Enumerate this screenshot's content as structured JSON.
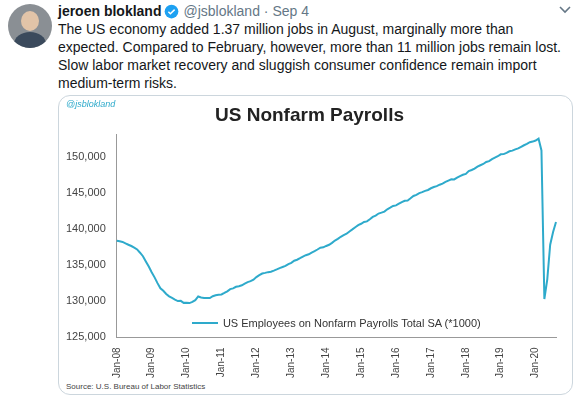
{
  "tweet": {
    "name": "jeroen blokland",
    "handle_date": "@jsblokland · Sep 4",
    "text": "The US economy added 1.37 million jobs in August, marginally more than expected. Compared to February, however, more than 11 million jobs remain lost. Slow labor market recovery and sluggish consumer confidence remain import medium-term risks."
  },
  "chart_data": {
    "type": "line",
    "title": "US Nonfarm Payrolls",
    "annotations": [
      "@jsblokland",
      "Source: U.S. Bureau of Labor Statistics"
    ],
    "categories": [
      "Jan-08",
      null,
      null,
      null,
      null,
      null,
      null,
      null,
      null,
      null,
      null,
      null,
      "Jan-09",
      null,
      null,
      null,
      null,
      null,
      null,
      null,
      null,
      null,
      null,
      null,
      "Jan-10",
      null,
      null,
      null,
      null,
      null,
      null,
      null,
      null,
      null,
      null,
      null,
      "Jan-11",
      null,
      null,
      null,
      null,
      null,
      null,
      null,
      null,
      null,
      null,
      null,
      "Jan-12",
      null,
      null,
      null,
      null,
      null,
      null,
      null,
      null,
      null,
      null,
      null,
      "Jan-13",
      null,
      null,
      null,
      null,
      null,
      null,
      null,
      null,
      null,
      null,
      null,
      "Jan-14",
      null,
      null,
      null,
      null,
      null,
      null,
      null,
      null,
      null,
      null,
      null,
      "Jan-15",
      null,
      null,
      null,
      null,
      null,
      null,
      null,
      null,
      null,
      null,
      null,
      "Jan-16",
      null,
      null,
      null,
      null,
      null,
      null,
      null,
      null,
      null,
      null,
      null,
      "Jan-17",
      null,
      null,
      null,
      null,
      null,
      null,
      null,
      null,
      null,
      null,
      null,
      "Jan-18",
      null,
      null,
      null,
      null,
      null,
      null,
      null,
      null,
      null,
      null,
      null,
      "Jan-19",
      null,
      null,
      null,
      null,
      null,
      null,
      null,
      null,
      null,
      null,
      null,
      "Jan-20",
      null,
      null,
      null,
      null,
      null,
      null,
      null
    ],
    "series": [
      {
        "name": "US Employees on Nonfarm Payrolls Total SA (*1000)",
        "color": "#2eaacb",
        "values": [
          138365,
          138279,
          138199,
          137985,
          137803,
          137631,
          137421,
          137162,
          136704,
          136221,
          135494,
          134788,
          133997,
          133299,
          132501,
          131792,
          131445,
          131000,
          130675,
          130460,
          130233,
          130024,
          130049,
          129775,
          129801,
          129744,
          129906,
          130146,
          130655,
          130521,
          130450,
          130458,
          130435,
          130699,
          130826,
          130891,
          130936,
          131145,
          131372,
          131679,
          131779,
          131998,
          132077,
          132209,
          132433,
          132637,
          132770,
          132977,
          133335,
          133595,
          133828,
          133919,
          134020,
          134079,
          134230,
          134397,
          134577,
          134723,
          134878,
          135124,
          135312,
          135605,
          135733,
          135946,
          136172,
          136360,
          136488,
          136732,
          136928,
          137148,
          137405,
          137451,
          137640,
          137799,
          138072,
          138392,
          138612,
          138906,
          139139,
          139331,
          139646,
          139929,
          140233,
          140514,
          140707,
          140952,
          141033,
          141327,
          141657,
          141839,
          142118,
          142242,
          142388,
          142706,
          142922,
          143161,
          143245,
          143480,
          143705,
          143891,
          143928,
          144221,
          144544,
          144708,
          144949,
          145071,
          145255,
          145375,
          145612,
          145785,
          145912,
          146104,
          146253,
          146484,
          146665,
          146850,
          146828,
          147087,
          147299,
          147474,
          147596,
          147986,
          148138,
          148322,
          148609,
          148788,
          148971,
          149253,
          149361,
          149641,
          149837,
          150040,
          150306,
          150328,
          150510,
          150726,
          150815,
          150993,
          151131,
          151342,
          151555,
          151740,
          151977,
          152061,
          152212,
          152463,
          150840,
          130303,
          133028,
          137809,
          139570,
          140944
        ]
      }
    ],
    "ylim": [
      125000,
      153000
    ],
    "yticks": [
      {
        "value": 125000,
        "label": "125,000"
      },
      {
        "value": 130000,
        "label": "130,000"
      },
      {
        "value": 135000,
        "label": "135,000"
      },
      {
        "value": 140000,
        "label": "140,000"
      },
      {
        "value": 145000,
        "label": "145,000"
      },
      {
        "value": 150000,
        "label": "150,000"
      }
    ],
    "grid": false,
    "legend": "bottom"
  }
}
